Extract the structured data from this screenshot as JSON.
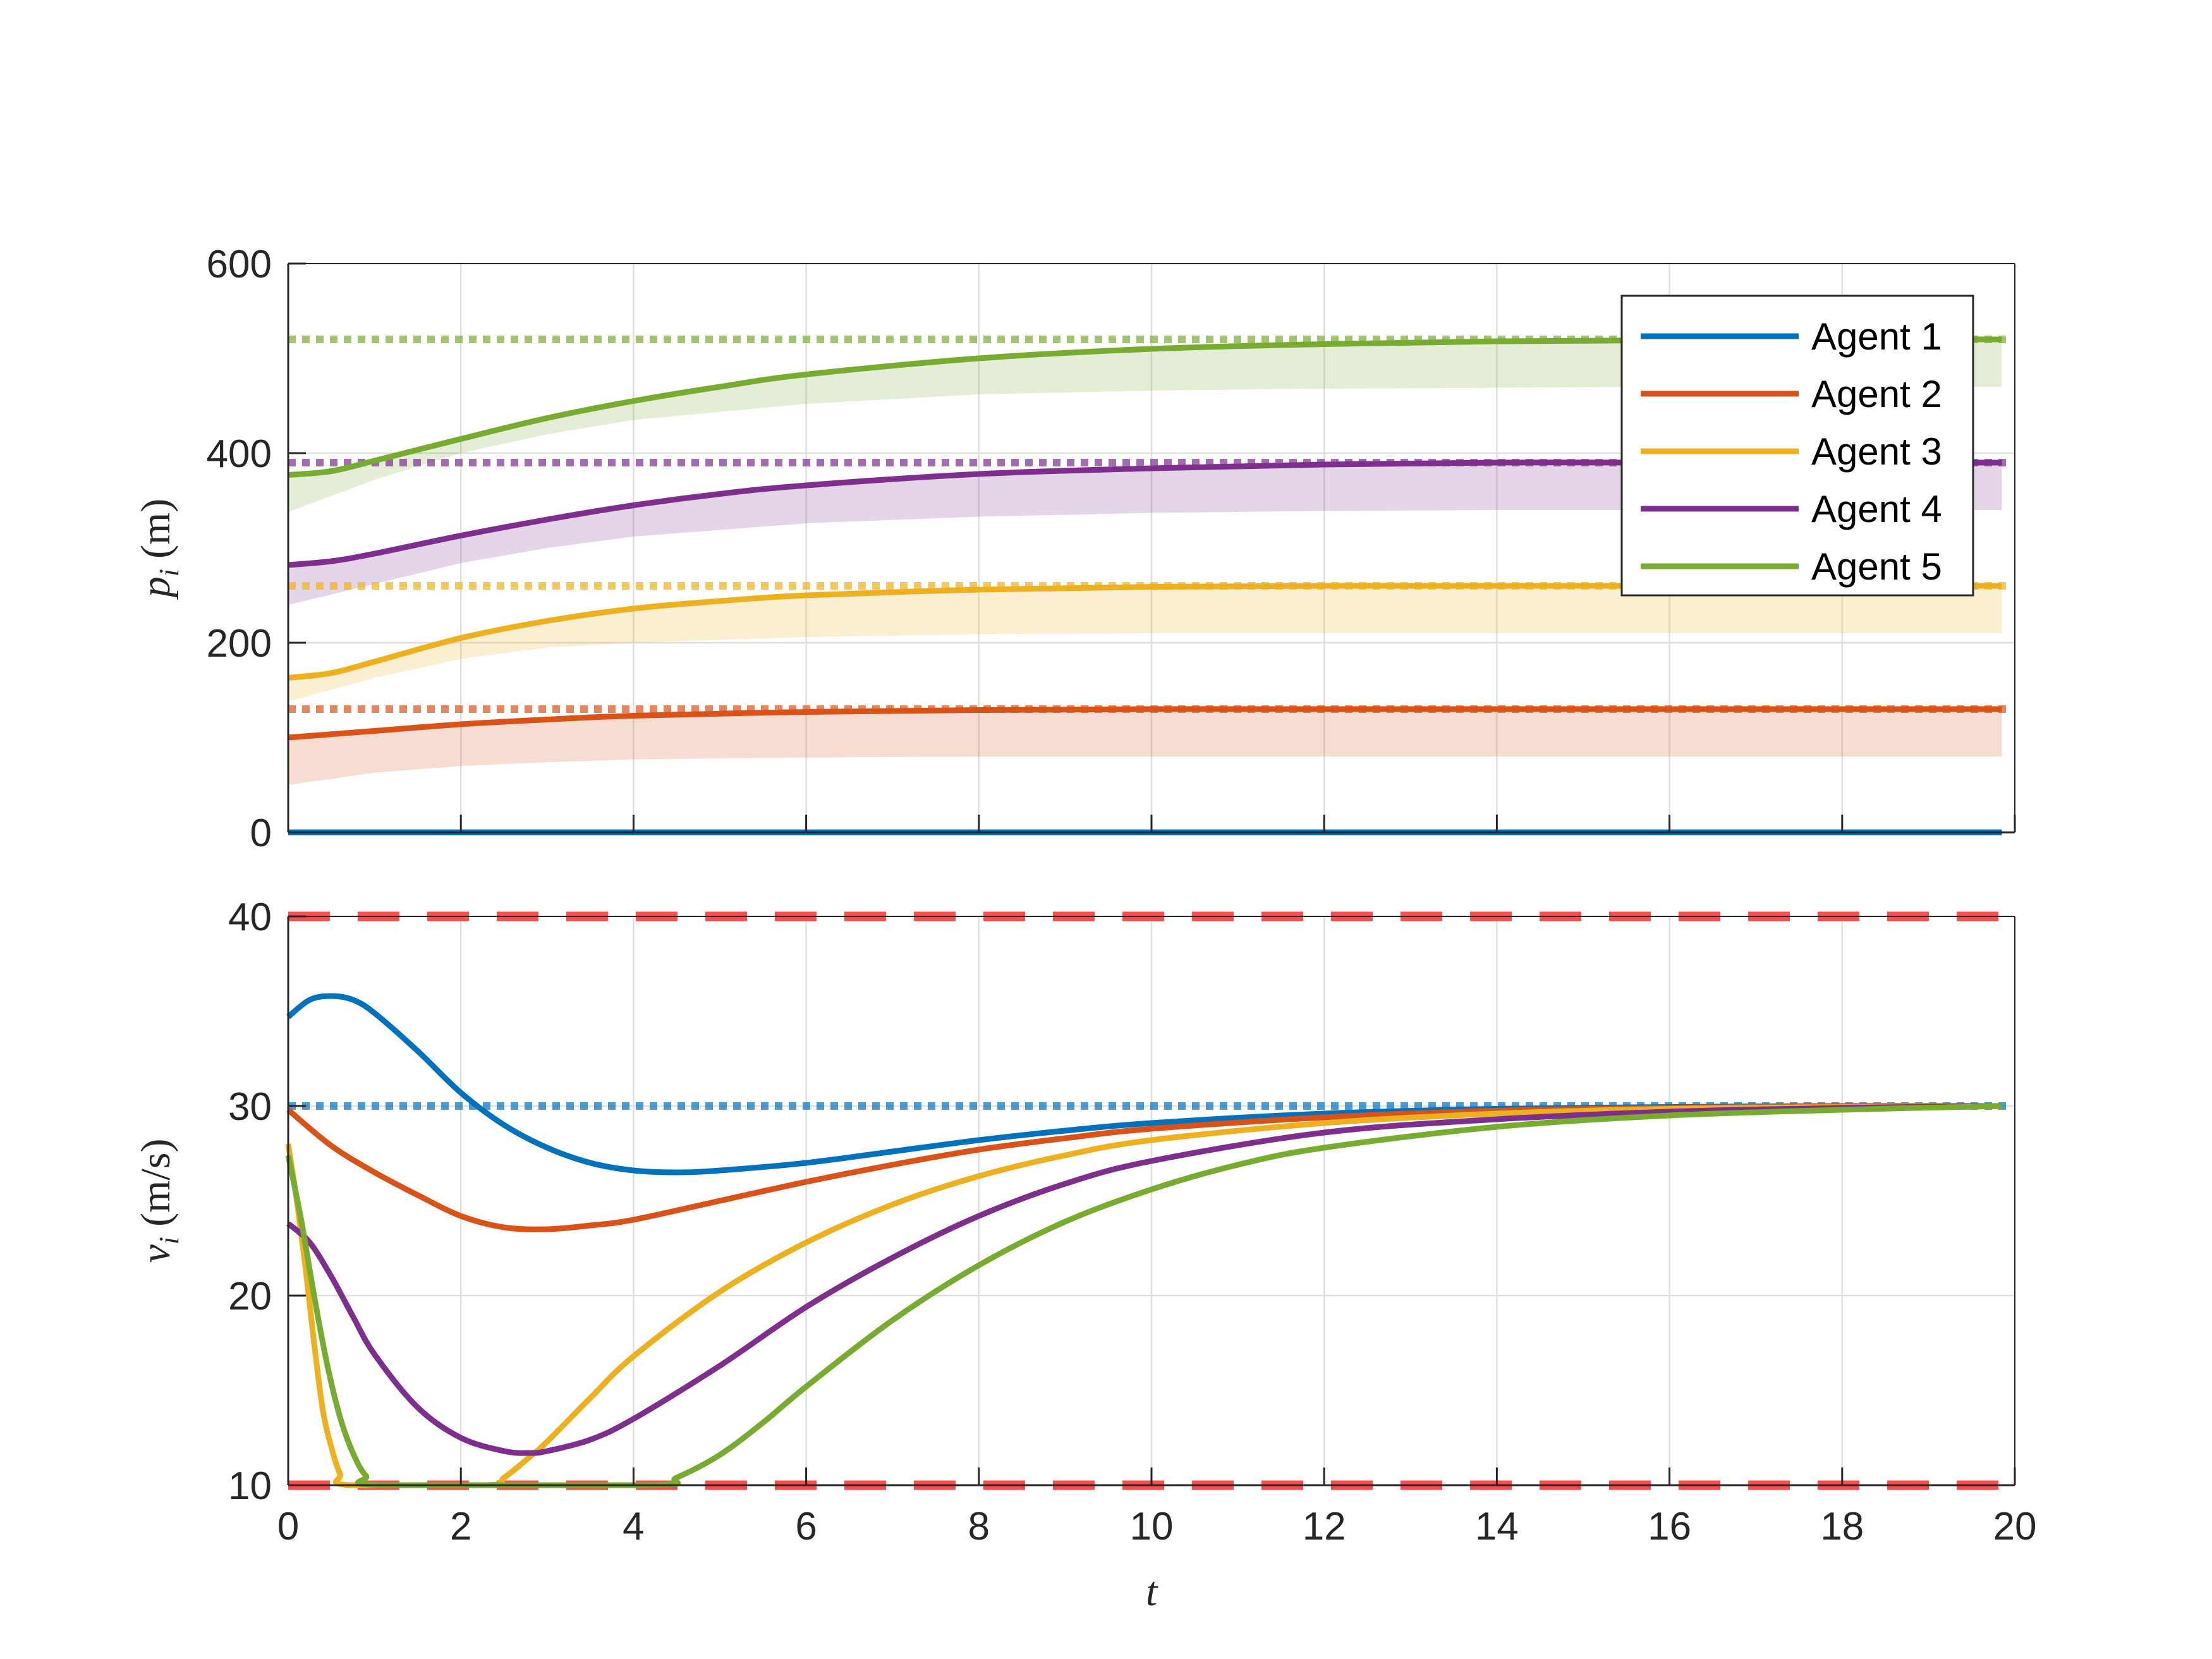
{
  "chart_data": [
    {
      "type": "line",
      "panel": "top",
      "ylabel_var": "p",
      "ylabel_sub": "i",
      "ylabel_unit": "(m)",
      "xlim": [
        0,
        20
      ],
      "ylim": [
        0,
        600
      ],
      "xticks": [
        0,
        2,
        4,
        6,
        8,
        10,
        12,
        14,
        16,
        18,
        20
      ],
      "yticks": [
        0,
        200,
        400,
        600
      ],
      "grid": true,
      "legend_position": "top-right",
      "legend": [
        {
          "label": "Agent 1",
          "color": "#0072BD"
        },
        {
          "label": "Agent 2",
          "color": "#D95319"
        },
        {
          "label": "Agent 3",
          "color": "#EDB120"
        },
        {
          "label": "Agent 4",
          "color": "#7E2F8E"
        },
        {
          "label": "Agent 5",
          "color": "#77AC30"
        }
      ],
      "series": [
        {
          "name": "Agent 1",
          "color": "#0072BD",
          "t": [
            0,
            20
          ],
          "values": [
            0,
            0
          ]
        },
        {
          "name": "Agent 2",
          "color": "#D95319",
          "t": [
            0,
            1,
            2,
            3,
            4,
            6,
            8,
            10,
            12,
            14,
            16,
            18,
            20
          ],
          "values": [
            100,
            107,
            114,
            119,
            123,
            127,
            129,
            130,
            130,
            130,
            130,
            130,
            130
          ],
          "target": 130,
          "band": {
            "t": [
              0,
              1,
              2,
              3,
              4,
              6,
              8,
              10,
              12,
              14,
              16,
              18,
              20
            ],
            "lower": [
              50,
              63,
              70,
              74,
              77,
              79,
              80,
              80,
              80,
              80,
              80,
              80,
              80
            ],
            "upper": [
              100,
              107,
              114,
              119,
              123,
              127,
              129,
              130,
              130,
              130,
              130,
              130,
              130
            ]
          }
        },
        {
          "name": "Agent 3",
          "color": "#EDB120",
          "t": [
            0,
            0.5,
            1,
            2,
            3,
            4,
            5,
            6,
            8,
            10,
            12,
            14,
            16,
            18,
            20
          ],
          "values": [
            163,
            168,
            180,
            205,
            223,
            236,
            244,
            250,
            256,
            259,
            260,
            260,
            260,
            260,
            260
          ],
          "target": 260,
          "band": {
            "t": [
              0,
              1,
              2,
              3,
              4,
              6,
              8,
              10,
              12,
              14,
              16,
              18,
              20
            ],
            "lower": [
              138,
              163,
              183,
              195,
              200,
              206,
              209,
              210,
              210,
              210,
              210,
              210,
              210
            ],
            "upper": [
              163,
              180,
              205,
              223,
              236,
              250,
              256,
              259,
              260,
              260,
              260,
              260,
              260
            ]
          }
        },
        {
          "name": "Agent 4",
          "color": "#7E2F8E",
          "t": [
            0,
            0.5,
            1,
            2,
            3,
            4,
            5,
            6,
            8,
            10,
            12,
            14,
            16,
            18,
            20
          ],
          "values": [
            282,
            286,
            294,
            313,
            330,
            345,
            357,
            366,
            378,
            384,
            388,
            390,
            390,
            390,
            390
          ],
          "target": 390,
          "band": {
            "t": [
              0,
              1,
              2,
              3,
              4,
              6,
              8,
              10,
              12,
              14,
              16,
              18,
              20
            ],
            "lower": [
              240,
              262,
              284,
              300,
              312,
              326,
              333,
              337,
              339,
              340,
              340,
              340,
              340
            ],
            "upper": [
              282,
              294,
              313,
              330,
              345,
              366,
              378,
              384,
              388,
              390,
              390,
              390,
              390
            ]
          }
        },
        {
          "name": "Agent 5",
          "color": "#77AC30",
          "t": [
            0,
            0.5,
            1,
            2,
            3,
            4,
            5,
            6,
            8,
            10,
            12,
            14,
            16,
            18,
            20
          ],
          "values": [
            377,
            381,
            392,
            415,
            437,
            455,
            470,
            483,
            500,
            510,
            515,
            518,
            519,
            520,
            520
          ],
          "target": 520,
          "band": {
            "t": [
              0,
              1,
              2,
              3,
              4,
              6,
              8,
              10,
              12,
              14,
              16,
              18,
              20
            ],
            "lower": [
              338,
              372,
              400,
              420,
              435,
              452,
              462,
              466,
              468,
              469,
              470,
              470,
              470
            ],
            "upper": [
              377,
              392,
              415,
              437,
              455,
              483,
              500,
              510,
              515,
              518,
              519,
              520,
              520
            ]
          }
        }
      ]
    },
    {
      "type": "line",
      "panel": "bottom",
      "ylabel_var": "v",
      "ylabel_sub": "i",
      "ylabel_unit": "(m/s)",
      "xlabel": "t",
      "xlim": [
        0,
        20
      ],
      "ylim": [
        10,
        40
      ],
      "xticks": [
        0,
        2,
        4,
        6,
        8,
        10,
        12,
        14,
        16,
        18,
        20
      ],
      "yticks": [
        10,
        20,
        30,
        40
      ],
      "grid": true,
      "bounds": {
        "upper": 40,
        "lower": 10,
        "color": "#FF4D4D"
      },
      "reference": {
        "value": 30,
        "color": "#0072BD"
      },
      "series": [
        {
          "name": "Agent 1",
          "color": "#0072BD",
          "t": [
            0,
            0.25,
            0.5,
            0.75,
            1,
            1.5,
            2,
            2.5,
            3,
            3.5,
            4,
            4.5,
            5,
            6,
            7,
            8,
            9,
            10,
            12,
            14,
            16,
            18,
            20
          ],
          "values": [
            34.7,
            35.6,
            35.8,
            35.6,
            34.9,
            32.9,
            30.7,
            29.0,
            27.8,
            27.0,
            26.6,
            26.5,
            26.6,
            27.0,
            27.6,
            28.2,
            28.7,
            29.1,
            29.6,
            29.85,
            29.95,
            30.0,
            30.0
          ]
        },
        {
          "name": "Agent 2",
          "color": "#D95319",
          "t": [
            0,
            0.5,
            1,
            1.5,
            2,
            2.5,
            3,
            3.5,
            4,
            5,
            6,
            7,
            8,
            9,
            10,
            12,
            14,
            16,
            18,
            20
          ],
          "values": [
            29.8,
            27.9,
            26.5,
            25.3,
            24.2,
            23.6,
            23.5,
            23.7,
            24.0,
            25.0,
            26.0,
            26.9,
            27.7,
            28.3,
            28.8,
            29.4,
            29.75,
            29.9,
            30.0,
            30.0
          ]
        },
        {
          "name": "Agent 3",
          "color": "#EDB120",
          "t": [
            0,
            0.1,
            0.2,
            0.3,
            0.4,
            0.5,
            0.6,
            0.7,
            2.3,
            2.5,
            2.8,
            3,
            3.5,
            4,
            5,
            6,
            7,
            8,
            9,
            10,
            12,
            14,
            16,
            18,
            20
          ],
          "values": [
            28.0,
            25.0,
            21.5,
            17.5,
            14.0,
            12.0,
            10.6,
            10.0,
            10.0,
            10.4,
            11.5,
            12.3,
            14.6,
            16.8,
            20.2,
            22.8,
            24.8,
            26.3,
            27.4,
            28.2,
            29.1,
            29.6,
            29.85,
            29.95,
            30.0
          ]
        },
        {
          "name": "Agent 4",
          "color": "#7E2F8E",
          "t": [
            0,
            0.25,
            0.5,
            0.75,
            1,
            1.5,
            2,
            2.5,
            2.8,
            3,
            3.5,
            4,
            5,
            6,
            7,
            8,
            9,
            10,
            12,
            14,
            16,
            18,
            20
          ],
          "values": [
            23.8,
            22.8,
            21.0,
            18.9,
            16.9,
            14.1,
            12.5,
            11.8,
            11.7,
            11.8,
            12.4,
            13.5,
            16.3,
            19.4,
            22.0,
            24.2,
            25.9,
            27.1,
            28.6,
            29.3,
            29.7,
            29.9,
            30.0
          ]
        },
        {
          "name": "Agent 5",
          "color": "#77AC30",
          "t": [
            0,
            0.15,
            0.3,
            0.45,
            0.6,
            0.75,
            0.9,
            1.1,
            4.2,
            4.5,
            5,
            5.5,
            6,
            7,
            8,
            9,
            10,
            11,
            12,
            14,
            16,
            18,
            20
          ],
          "values": [
            27.4,
            24.0,
            20.0,
            16.4,
            13.6,
            11.7,
            10.5,
            10.0,
            10.0,
            10.4,
            11.6,
            13.3,
            15.2,
            18.7,
            21.6,
            23.9,
            25.6,
            26.9,
            27.8,
            28.9,
            29.5,
            29.8,
            30.0
          ]
        }
      ]
    }
  ]
}
